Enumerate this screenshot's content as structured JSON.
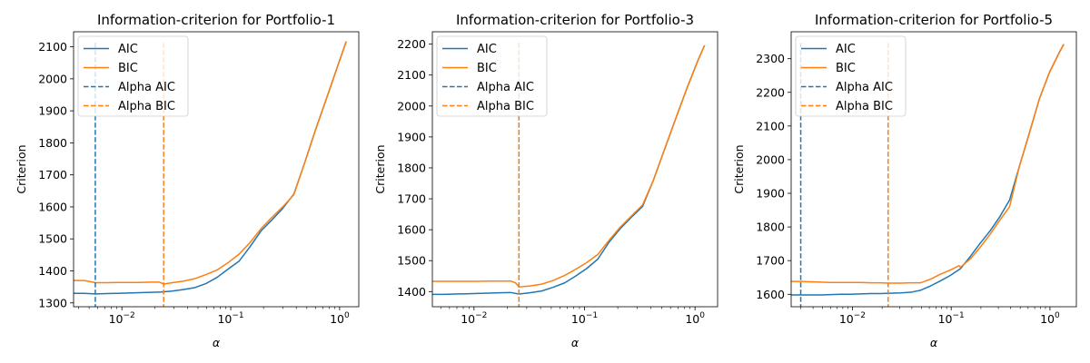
{
  "chart_data": [
    {
      "type": "line",
      "title": "Information-criterion for Portfolio-1",
      "xlabel": "α",
      "ylabel": "Criterion",
      "xscale": "log",
      "xlim": [
        0.0036,
        1.5
      ],
      "ylim": [
        1288,
        2147
      ],
      "x_ticks": [
        {
          "v": 0.01,
          "base": "10",
          "exp": "−2"
        },
        {
          "v": 0.1,
          "base": "10",
          "exp": "−1"
        },
        {
          "v": 1,
          "base": "10",
          "exp": "0"
        }
      ],
      "y_ticks": [
        "1300",
        "1400",
        "1500",
        "1600",
        "1700",
        "1800",
        "1900",
        "2000",
        "2100"
      ],
      "legend": {
        "loc": "upper left",
        "entries": [
          "AIC",
          "BIC",
          "Alpha AIC",
          "Alpha BIC"
        ]
      },
      "colors": {
        "AIC": "#1f77b4",
        "BIC": "#ff7f0e"
      },
      "series": [
        {
          "name": "AIC",
          "x": [
            0.0036,
            0.0045,
            0.0057,
            0.0072,
            0.0091,
            0.0115,
            0.0145,
            0.0183,
            0.023,
            0.029,
            0.037,
            0.047,
            0.059,
            0.075,
            0.094,
            0.119,
            0.15,
            0.19,
            0.24,
            0.3,
            0.38,
            0.48,
            0.6,
            0.76,
            0.96,
            1.15
          ],
          "y": [
            1330,
            1330,
            1328,
            1329,
            1330,
            1331,
            1332,
            1333,
            1334,
            1337,
            1342,
            1348,
            1360,
            1380,
            1405,
            1430,
            1475,
            1525,
            1560,
            1595,
            1640,
            1740,
            1840,
            1940,
            2040,
            2117
          ]
        },
        {
          "name": "BIC",
          "x": [
            0.0036,
            0.0045,
            0.0052,
            0.0057,
            0.0072,
            0.0091,
            0.0115,
            0.0145,
            0.0183,
            0.022,
            0.0242,
            0.029,
            0.037,
            0.047,
            0.059,
            0.075,
            0.094,
            0.119,
            0.15,
            0.19,
            0.24,
            0.3,
            0.38,
            0.48,
            0.6,
            0.76,
            0.96,
            1.15
          ],
          "y": [
            1370,
            1370,
            1366,
            1363,
            1363,
            1364,
            1364,
            1364,
            1365,
            1365,
            1359,
            1363,
            1368,
            1376,
            1388,
            1403,
            1425,
            1452,
            1488,
            1532,
            1568,
            1600,
            1638,
            1740,
            1840,
            1940,
            2040,
            2117
          ]
        }
      ],
      "alpha_aic": 0.0057,
      "alpha_bic": 0.0242
    },
    {
      "type": "line",
      "title": "Information-criterion for Portfolio-3",
      "xlabel": "α",
      "ylabel": "Criterion",
      "xscale": "log",
      "xlim": [
        0.0042,
        1.6
      ],
      "ylim": [
        1351,
        2240
      ],
      "x_ticks": [
        {
          "v": 0.01,
          "base": "10",
          "exp": "−2"
        },
        {
          "v": 0.1,
          "base": "10",
          "exp": "−1"
        },
        {
          "v": 1,
          "base": "10",
          "exp": "0"
        }
      ],
      "y_ticks": [
        "1400",
        "1500",
        "1600",
        "1700",
        "1800",
        "1900",
        "2000",
        "2100",
        "2200"
      ],
      "legend": {
        "loc": "upper left",
        "entries": [
          "AIC",
          "BIC",
          "Alpha AIC",
          "Alpha BIC"
        ]
      },
      "colors": {
        "AIC": "#1f77b4",
        "BIC": "#ff7f0e"
      },
      "series": [
        {
          "name": "AIC",
          "x": [
            0.0042,
            0.0053,
            0.0067,
            0.0085,
            0.0107,
            0.0135,
            0.017,
            0.0215,
            0.0255,
            0.032,
            0.041,
            0.052,
            0.066,
            0.083,
            0.105,
            0.132,
            0.167,
            0.21,
            0.265,
            0.335,
            0.42,
            0.53,
            0.67,
            0.85,
            1.07,
            1.22
          ],
          "y": [
            1391,
            1391,
            1392,
            1393,
            1394,
            1395,
            1396,
            1397,
            1392,
            1396,
            1402,
            1414,
            1428,
            1450,
            1475,
            1505,
            1560,
            1603,
            1640,
            1675,
            1760,
            1860,
            1960,
            2060,
            2150,
            2196
          ]
        },
        {
          "name": "BIC",
          "x": [
            0.0042,
            0.0053,
            0.0067,
            0.0085,
            0.0107,
            0.0135,
            0.017,
            0.0215,
            0.0238,
            0.0255,
            0.032,
            0.041,
            0.052,
            0.066,
            0.083,
            0.105,
            0.132,
            0.167,
            0.21,
            0.265,
            0.335,
            0.42,
            0.53,
            0.67,
            0.85,
            1.07,
            1.22
          ],
          "y": [
            1433,
            1433,
            1433,
            1433,
            1433,
            1434,
            1434,
            1434,
            1428,
            1415,
            1418,
            1424,
            1436,
            1452,
            1472,
            1494,
            1520,
            1566,
            1608,
            1644,
            1680,
            1760,
            1860,
            1960,
            2060,
            2150,
            2196
          ]
        }
      ],
      "alpha_aic": 0.0255,
      "alpha_bic": 0.0255
    },
    {
      "type": "line",
      "title": "Information-criterion for Portfolio-5",
      "xlabel": "α",
      "ylabel": "Criterion",
      "xscale": "log",
      "xlim": [
        0.0024,
        1.85
      ],
      "ylim": [
        1563,
        2380
      ],
      "x_ticks": [
        {
          "v": 0.01,
          "base": "10",
          "exp": "−2"
        },
        {
          "v": 0.1,
          "base": "10",
          "exp": "−1"
        },
        {
          "v": 1,
          "base": "10",
          "exp": "0"
        }
      ],
      "y_ticks": [
        "1600",
        "1700",
        "1800",
        "1900",
        "2000",
        "2100",
        "2200",
        "2300"
      ],
      "legend": {
        "loc": "upper left",
        "entries": [
          "AIC",
          "BIC",
          "Alpha AIC",
          "Alpha BIC"
        ]
      },
      "colors": {
        "AIC": "#1f77b4",
        "BIC": "#ff7f0e"
      },
      "series": [
        {
          "name": "AIC",
          "x": [
            0.0024,
            0.003,
            0.0038,
            0.0048,
            0.006,
            0.0076,
            0.0096,
            0.012,
            0.0152,
            0.019,
            0.024,
            0.031,
            0.039,
            0.049,
            0.062,
            0.078,
            0.098,
            0.124,
            0.156,
            0.197,
            0.25,
            0.31,
            0.39,
            0.49,
            0.62,
            0.78,
            0.99,
            1.25,
            1.38
          ],
          "y": [
            1598,
            1598,
            1598,
            1598,
            1599,
            1600,
            1600,
            1601,
            1602,
            1602,
            1603,
            1604,
            1606,
            1612,
            1625,
            1640,
            1656,
            1676,
            1712,
            1752,
            1790,
            1830,
            1880,
            1980,
            2080,
            2180,
            2260,
            2320,
            2343
          ]
        },
        {
          "name": "BIC",
          "x": [
            0.0024,
            0.003,
            0.0038,
            0.0048,
            0.006,
            0.0076,
            0.0096,
            0.012,
            0.0152,
            0.019,
            0.023,
            0.031,
            0.039,
            0.049,
            0.062,
            0.078,
            0.098,
            0.12,
            0.124,
            0.156,
            0.197,
            0.25,
            0.31,
            0.39,
            0.49,
            0.62,
            0.78,
            0.99,
            1.25,
            1.38
          ],
          "y": [
            1638,
            1638,
            1637,
            1636,
            1635,
            1635,
            1635,
            1635,
            1634,
            1634,
            1633,
            1633,
            1634,
            1634,
            1645,
            1660,
            1672,
            1685,
            1680,
            1705,
            1740,
            1780,
            1820,
            1860,
            1980,
            2080,
            2180,
            2260,
            2320,
            2343
          ]
        }
      ],
      "alpha_aic": 0.003,
      "alpha_bic": 0.023
    }
  ]
}
